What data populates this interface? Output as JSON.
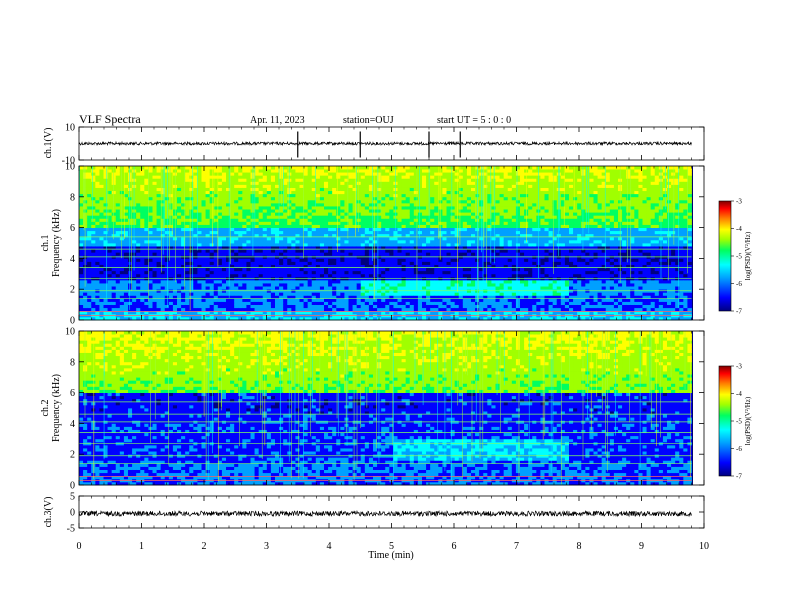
{
  "header": {
    "title": "VLF Spectra",
    "date": "Apr. 11, 2023",
    "station": "station=OUJ",
    "start_ut": "start UT =   5 : 0  : 0"
  },
  "chart_data": [
    {
      "panel": "ch1-waveform",
      "type": "line",
      "ylabel": "ch.1(V)",
      "ylim": [
        -10,
        10
      ],
      "y_ticks": [
        "10",
        "-10"
      ],
      "xlim": [
        0,
        10
      ],
      "baseline_level": 0,
      "data_end_min": 9.8
    },
    {
      "panel": "ch1-spectrogram",
      "type": "heatmap",
      "ylabel": "ch.1\nFrequency (kHz)",
      "ylim": [
        0,
        10
      ],
      "y_ticks": [
        "0",
        "2",
        "4",
        "6",
        "8",
        "10"
      ],
      "xlim": [
        0,
        10
      ],
      "data_end_min": 9.8,
      "colorbar": {
        "label": "log(PSD)(V²/Hz)",
        "range": [
          -7,
          -3
        ],
        "ticks": [
          "-3",
          "-4",
          "-5",
          "-6",
          "-7"
        ]
      }
    },
    {
      "panel": "ch2-spectrogram",
      "type": "heatmap",
      "ylabel": "ch.2\nFrequency (kHz)",
      "ylim": [
        0,
        10
      ],
      "y_ticks": [
        "0",
        "2",
        "4",
        "6",
        "8",
        "10"
      ],
      "xlim": [
        0,
        10
      ],
      "data_end_min": 9.8,
      "colorbar": {
        "label": "log(PSD)(V²/Hz)",
        "range": [
          -7,
          -3
        ],
        "ticks": [
          "-3",
          "-4",
          "-5",
          "-6",
          "-7"
        ]
      }
    },
    {
      "panel": "ch3-waveform",
      "type": "line",
      "ylabel": "ch.3(V)",
      "ylim": [
        -5,
        5
      ],
      "y_ticks": [
        "5",
        "0",
        "-5"
      ],
      "xlim": [
        0,
        10
      ],
      "baseline_level": -0.5,
      "data_end_min": 9.8
    }
  ],
  "x_axis": {
    "label": "Time (min)",
    "ticks": [
      "0",
      "1",
      "2",
      "3",
      "4",
      "5",
      "6",
      "7",
      "8",
      "9",
      "10"
    ]
  },
  "colorscale": [
    "#000080",
    "#0000ff",
    "#00a0ff",
    "#00ffff",
    "#00ff60",
    "#a0ff00",
    "#ffff00",
    "#ff8000",
    "#ff0000",
    "#800000"
  ]
}
